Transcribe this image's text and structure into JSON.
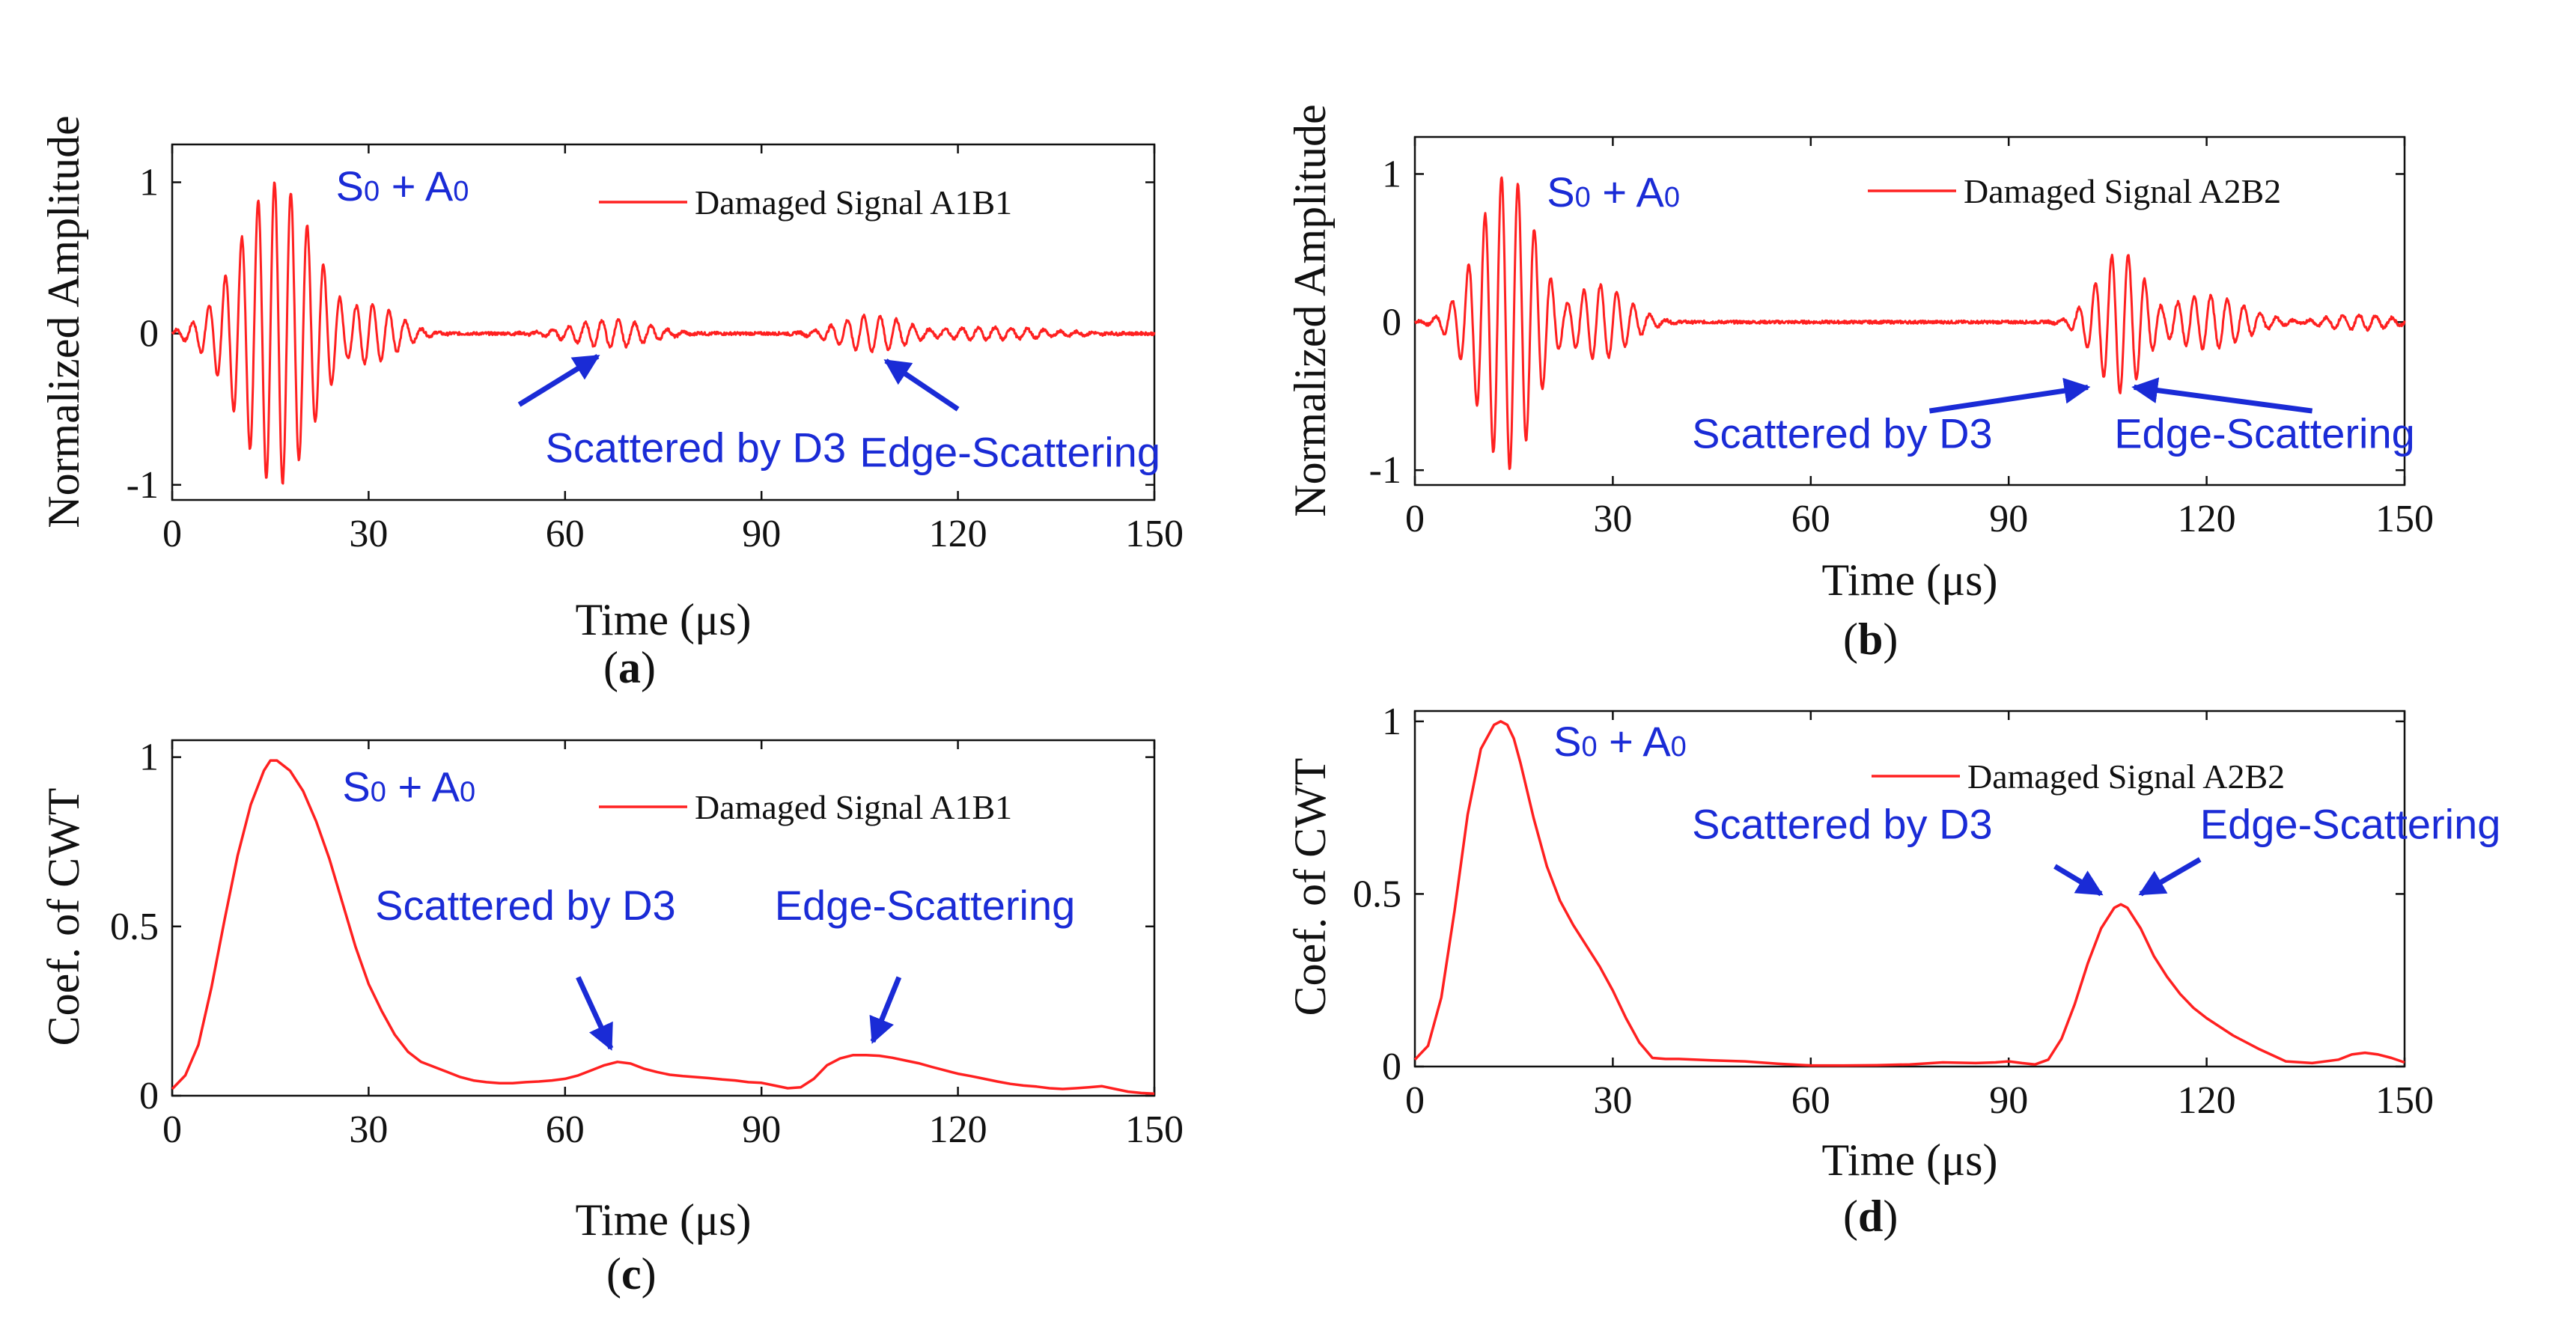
{
  "colors": {
    "signal": "#ff2020",
    "annotation": "#1a2bd6",
    "axis": "#111111"
  },
  "chart_data": [
    {
      "id": "a",
      "type": "line",
      "panel_label": "a",
      "xlabel": "Time (μs)",
      "ylabel": "Normalized Amplitude",
      "xlim": [
        0,
        150
      ],
      "ylim": [
        -1.1,
        1.25
      ],
      "xticks": [
        "0",
        "30",
        "60",
        "90",
        "120",
        "150"
      ],
      "yticks": [
        "-1",
        "0",
        "1"
      ],
      "legend": "Damaged Signal A1B1",
      "series": [
        {
          "name": "Damaged Signal A1B1",
          "kind": "waveform",
          "carrier_period_us": 2.5,
          "packets": [
            {
              "center": 16,
              "width": 8,
              "amp": 1.0
            },
            {
              "center": 30,
              "width": 6,
              "amp": 0.2
            },
            {
              "center": 67,
              "width": 8,
              "amp": 0.09
            },
            {
              "center": 107,
              "width": 7,
              "amp": 0.12
            },
            {
              "center": 125,
              "width": 12,
              "amp": 0.04
            }
          ],
          "noise": 0.02
        }
      ],
      "annotations": [
        {
          "text": "S0+A0",
          "main1": "S",
          "sub1": "0",
          "op": " + ",
          "main2": "A",
          "sub2": "0",
          "at": [
            25,
            0.88
          ]
        },
        {
          "text": "Scattered by D3",
          "at": [
            57,
            -0.85
          ],
          "arrow_to": [
            65,
            -0.15
          ]
        },
        {
          "text": "Edge-Scattering",
          "at": [
            105,
            -0.88
          ],
          "arrow_to": [
            109,
            -0.18
          ]
        }
      ]
    },
    {
      "id": "b",
      "type": "line",
      "panel_label": "b",
      "xlabel": "Time (μs)",
      "ylabel": "Normalized Amplitude",
      "xlim": [
        0,
        150
      ],
      "ylim": [
        -1.1,
        1.25
      ],
      "xticks": [
        "0",
        "30",
        "60",
        "90",
        "120",
        "150"
      ],
      "yticks": [
        "-1",
        "0",
        "1"
      ],
      "legend": "Damaged Signal A2B2",
      "series": [
        {
          "name": "Damaged Signal A2B2",
          "kind": "waveform",
          "carrier_period_us": 2.5,
          "packets": [
            {
              "center": 14,
              "width": 6,
              "amp": 1.0
            },
            {
              "center": 28,
              "width": 6,
              "amp": 0.25
            },
            {
              "center": 107,
              "width": 5,
              "amp": 0.48
            },
            {
              "center": 120,
              "width": 8,
              "amp": 0.18
            },
            {
              "center": 143,
              "width": 7,
              "amp": 0.05
            }
          ],
          "noise": 0.02
        }
      ],
      "annotations": [
        {
          "text": "S0+A0",
          "main1": "S",
          "sub1": "0",
          "op": " + ",
          "main2": "A",
          "sub2": "0",
          "at": [
            20,
            0.78
          ]
        },
        {
          "text": "Scattered by D3",
          "at": [
            42,
            -0.85
          ],
          "arrow_from": [
            78,
            -0.6
          ],
          "arrow_to": [
            102,
            -0.44
          ]
        },
        {
          "text": "Edge-Scattering",
          "at": [
            106,
            -0.85
          ],
          "arrow_from": [
            136,
            -0.6
          ],
          "arrow_to": [
            109,
            -0.44
          ]
        }
      ]
    },
    {
      "id": "c",
      "type": "line",
      "panel_label": "c",
      "xlabel": "Time (μs)",
      "ylabel": "Coef. of CWT",
      "xlim": [
        0,
        150
      ],
      "ylim": [
        0,
        1.05
      ],
      "xticks": [
        "0",
        "30",
        "60",
        "90",
        "120",
        "150"
      ],
      "yticks": [
        "0",
        "0.5",
        "1"
      ],
      "legend": "Damaged Signal A1B1",
      "series": [
        {
          "name": "Damaged Signal A1B1",
          "kind": "line",
          "x": [
            0,
            2,
            4,
            6,
            8,
            10,
            12,
            14,
            15,
            16,
            18,
            20,
            22,
            24,
            26,
            28,
            30,
            32,
            34,
            36,
            38,
            40,
            42,
            44,
            46,
            48,
            50,
            52,
            54,
            56,
            58,
            60,
            62,
            64,
            66,
            68,
            70,
            72,
            74,
            76,
            78,
            80,
            82,
            84,
            86,
            88,
            90,
            92,
            94,
            96,
            98,
            100,
            102,
            104,
            106,
            108,
            110,
            112,
            114,
            116,
            118,
            120,
            122,
            124,
            126,
            128,
            130,
            132,
            134,
            136,
            138,
            140,
            142,
            144,
            146,
            148,
            150
          ],
          "y": [
            0.02,
            0.06,
            0.15,
            0.32,
            0.52,
            0.71,
            0.86,
            0.96,
            0.99,
            0.99,
            0.96,
            0.9,
            0.81,
            0.7,
            0.57,
            0.44,
            0.33,
            0.25,
            0.18,
            0.13,
            0.1,
            0.085,
            0.07,
            0.055,
            0.045,
            0.04,
            0.037,
            0.037,
            0.04,
            0.042,
            0.045,
            0.05,
            0.06,
            0.075,
            0.09,
            0.1,
            0.095,
            0.08,
            0.07,
            0.062,
            0.058,
            0.055,
            0.052,
            0.048,
            0.045,
            0.04,
            0.038,
            0.03,
            0.022,
            0.025,
            0.05,
            0.09,
            0.11,
            0.12,
            0.12,
            0.118,
            0.112,
            0.104,
            0.096,
            0.085,
            0.075,
            0.065,
            0.058,
            0.05,
            0.042,
            0.035,
            0.03,
            0.027,
            0.022,
            0.02,
            0.022,
            0.025,
            0.028,
            0.02,
            0.012,
            0.008,
            0.006
          ]
        }
      ],
      "annotations": [
        {
          "text": "S0+A0",
          "main1": "S",
          "sub1": "0",
          "op": " + ",
          "main2": "A",
          "sub2": "0",
          "at": [
            26,
            0.87
          ]
        },
        {
          "text": "Scattered by D3",
          "at": [
            31,
            0.52
          ],
          "arrow_from": [
            62,
            0.35
          ],
          "arrow_to": [
            67,
            0.14
          ]
        },
        {
          "text": "Edge-Scattering",
          "at": [
            92,
            0.52
          ],
          "arrow_from": [
            111,
            0.35
          ],
          "arrow_to": [
            107,
            0.16
          ]
        }
      ]
    },
    {
      "id": "d",
      "type": "line",
      "panel_label": "d",
      "xlabel": "Time (μs)",
      "ylabel": "Coef. of CWT",
      "xlim": [
        0,
        150
      ],
      "ylim": [
        0,
        1.03
      ],
      "xticks": [
        "0",
        "30",
        "60",
        "90",
        "120",
        "150"
      ],
      "yticks": [
        "0",
        "0.5",
        "1"
      ],
      "legend": "Damaged Signal A2B2",
      "series": [
        {
          "name": "Damaged Signal A2B2",
          "kind": "line",
          "x": [
            0,
            2,
            4,
            6,
            8,
            10,
            12,
            13,
            14,
            15,
            16,
            18,
            20,
            22,
            24,
            26,
            28,
            30,
            32,
            34,
            36,
            38,
            40,
            45,
            50,
            55,
            60,
            65,
            70,
            75,
            80,
            85,
            88,
            90,
            92,
            94,
            96,
            98,
            100,
            102,
            104,
            106,
            107,
            108,
            110,
            112,
            114,
            116,
            118,
            120,
            124,
            128,
            132,
            136,
            140,
            142,
            144,
            146,
            148,
            150
          ],
          "y": [
            0.02,
            0.06,
            0.2,
            0.45,
            0.73,
            0.92,
            0.99,
            1.0,
            0.99,
            0.95,
            0.88,
            0.72,
            0.58,
            0.48,
            0.41,
            0.35,
            0.29,
            0.22,
            0.14,
            0.07,
            0.025,
            0.022,
            0.022,
            0.018,
            0.015,
            0.008,
            0.003,
            0.003,
            0.004,
            0.006,
            0.012,
            0.01,
            0.012,
            0.015,
            0.01,
            0.006,
            0.02,
            0.08,
            0.18,
            0.3,
            0.4,
            0.46,
            0.47,
            0.46,
            0.4,
            0.32,
            0.26,
            0.21,
            0.17,
            0.14,
            0.09,
            0.05,
            0.015,
            0.01,
            0.02,
            0.035,
            0.04,
            0.035,
            0.025,
            0.012
          ]
        }
      ],
      "annotations": [
        {
          "text": "S0+A0",
          "main1": "S",
          "sub1": "0",
          "op": " + ",
          "main2": "A",
          "sub2": "0",
          "at": [
            21,
            0.9
          ]
        },
        {
          "text": "Scattered by D3",
          "at": [
            42,
            0.66
          ],
          "arrow_from": [
            97,
            0.58
          ],
          "arrow_to": [
            104,
            0.5
          ]
        },
        {
          "text": "Edge-Scattering",
          "at": [
            119,
            0.66
          ],
          "arrow_from": [
            119,
            0.6
          ],
          "arrow_to": [
            110,
            0.5
          ]
        }
      ]
    }
  ]
}
